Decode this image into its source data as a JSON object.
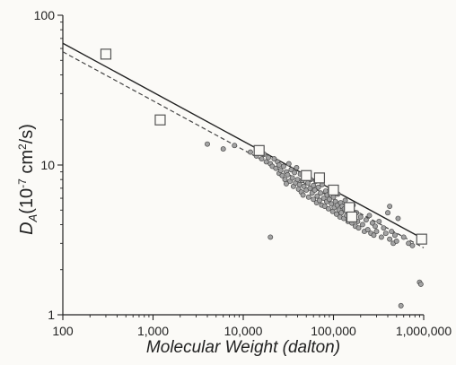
{
  "chart_data": {
    "type": "scatter",
    "title": "",
    "xlabel": "Molecular Weight (dalton)",
    "ylabel": {
      "base": "D",
      "subscript": "A",
      "paren_open": "(10",
      "exp": "-7",
      "unit": " cm",
      "unit_exp": "2",
      "tail": "/s)"
    },
    "x_scale": "log",
    "y_scale": "log",
    "xlim": [
      100,
      1000000
    ],
    "ylim": [
      1,
      100
    ],
    "x_ticks": [
      {
        "value": 100,
        "label": "100"
      },
      {
        "value": 1000,
        "label": "1,000"
      },
      {
        "value": 10000,
        "label": "10,000"
      },
      {
        "value": 100000,
        "label": "100,000"
      },
      {
        "value": 1000000,
        "label": "1,000,000"
      }
    ],
    "y_ticks": [
      {
        "value": 1,
        "label": "1"
      },
      {
        "value": 10,
        "label": "10"
      },
      {
        "value": 100,
        "label": "100"
      }
    ],
    "grid": false,
    "legend": "none",
    "series": [
      {
        "marker": "open-square",
        "color": "#555555",
        "points": [
          [
            300,
            55
          ],
          [
            1200,
            20
          ],
          [
            15000,
            12.5
          ],
          [
            50000,
            8.5
          ],
          [
            70000,
            8.2
          ],
          [
            100000,
            6.8
          ],
          [
            150000,
            5.2
          ],
          [
            160000,
            4.5
          ],
          [
            950000,
            3.2
          ]
        ]
      },
      {
        "marker": "filled-circle",
        "color": "#8c8c8c",
        "points": [
          [
            8000,
            13.5
          ],
          [
            12000,
            12.2
          ],
          [
            14000,
            11.5
          ],
          [
            16000,
            11.0
          ],
          [
            17000,
            11.8
          ],
          [
            18000,
            10.5
          ],
          [
            19000,
            11.2
          ],
          [
            20000,
            10.2
          ],
          [
            21000,
            9.8
          ],
          [
            22000,
            11.0
          ],
          [
            23000,
            9.5
          ],
          [
            24000,
            10.5
          ],
          [
            25000,
            8.8
          ],
          [
            25000,
            10.0
          ],
          [
            26000,
            9.2
          ],
          [
            27000,
            8.5
          ],
          [
            28000,
            9.8
          ],
          [
            29000,
            8.0
          ],
          [
            30000,
            9.0
          ],
          [
            30000,
            7.5
          ],
          [
            31000,
            8.6
          ],
          [
            32000,
            10.2
          ],
          [
            33000,
            7.8
          ],
          [
            34000,
            9.3
          ],
          [
            35000,
            8.2
          ],
          [
            36000,
            7.2
          ],
          [
            37000,
            8.9
          ],
          [
            38000,
            7.6
          ],
          [
            39000,
            9.6
          ],
          [
            40000,
            8.0
          ],
          [
            41000,
            6.9
          ],
          [
            42000,
            7.4
          ],
          [
            43000,
            8.7
          ],
          [
            44000,
            6.6
          ],
          [
            45000,
            7.9
          ],
          [
            46000,
            6.3
          ],
          [
            47000,
            7.2
          ],
          [
            48000,
            8.4
          ],
          [
            50000,
            6.8
          ],
          [
            52000,
            7.6
          ],
          [
            53000,
            6.1
          ],
          [
            55000,
            7.0
          ],
          [
            56000,
            8.0
          ],
          [
            58000,
            6.5
          ],
          [
            60000,
            7.3
          ],
          [
            60000,
            5.9
          ],
          [
            62000,
            6.8
          ],
          [
            64000,
            7.8
          ],
          [
            65000,
            5.6
          ],
          [
            66000,
            6.2
          ],
          [
            68000,
            7.1
          ],
          [
            70000,
            5.8
          ],
          [
            72000,
            6.5
          ],
          [
            74000,
            5.4
          ],
          [
            75000,
            7.4
          ],
          [
            78000,
            6.0
          ],
          [
            80000,
            5.3
          ],
          [
            82000,
            6.7
          ],
          [
            84000,
            5.7
          ],
          [
            85000,
            6.3
          ],
          [
            88000,
            5.1
          ],
          [
            90000,
            5.9
          ],
          [
            92000,
            6.9
          ],
          [
            95000,
            5.5
          ],
          [
            98000,
            4.9
          ],
          [
            100000,
            6.1
          ],
          [
            102000,
            5.2
          ],
          [
            105000,
            5.7
          ],
          [
            108000,
            4.7
          ],
          [
            110000,
            5.4
          ],
          [
            112000,
            6.4
          ],
          [
            115000,
            5.0
          ],
          [
            118000,
            4.5
          ],
          [
            120000,
            5.6
          ],
          [
            122000,
            4.8
          ],
          [
            125000,
            5.3
          ],
          [
            130000,
            4.4
          ],
          [
            132000,
            5.1
          ],
          [
            135000,
            5.8
          ],
          [
            140000,
            4.6
          ],
          [
            145000,
            4.2
          ],
          [
            150000,
            5.0
          ],
          [
            155000,
            4.7
          ],
          [
            160000,
            4.1
          ],
          [
            165000,
            5.4
          ],
          [
            170000,
            4.4
          ],
          [
            175000,
            3.9
          ],
          [
            180000,
            4.8
          ],
          [
            185000,
            4.2
          ],
          [
            190000,
            3.8
          ],
          [
            200000,
            4.5
          ],
          [
            210000,
            4.0
          ],
          [
            220000,
            3.6
          ],
          [
            230000,
            4.3
          ],
          [
            240000,
            3.7
          ],
          [
            250000,
            4.6
          ],
          [
            260000,
            3.5
          ],
          [
            270000,
            4.1
          ],
          [
            280000,
            3.4
          ],
          [
            290000,
            3.9
          ],
          [
            300000,
            3.6
          ],
          [
            320000,
            4.2
          ],
          [
            340000,
            3.3
          ],
          [
            360000,
            3.8
          ],
          [
            380000,
            3.5
          ],
          [
            400000,
            4.8
          ],
          [
            420000,
            3.2
          ],
          [
            440000,
            3.6
          ],
          [
            460000,
            3.0
          ],
          [
            480000,
            3.4
          ],
          [
            500000,
            3.1
          ],
          [
            520000,
            4.4
          ],
          [
            600000,
            3.3
          ],
          [
            680000,
            3.0
          ],
          [
            750000,
            2.9
          ],
          [
            4000,
            13.8
          ],
          [
            6000,
            12.8
          ],
          [
            20000,
            3.3
          ],
          [
            420000,
            5.3
          ],
          [
            900000,
            1.65
          ],
          [
            930000,
            1.6
          ],
          [
            560000,
            1.15
          ]
        ]
      },
      {
        "line": "solid",
        "color": "#222222",
        "points": [
          [
            100,
            65
          ],
          [
            1000000,
            3.2
          ]
        ]
      },
      {
        "line": "dashed",
        "color": "#444444",
        "points": [
          [
            100,
            57
          ],
          [
            1000000,
            2.8
          ]
        ]
      }
    ]
  }
}
